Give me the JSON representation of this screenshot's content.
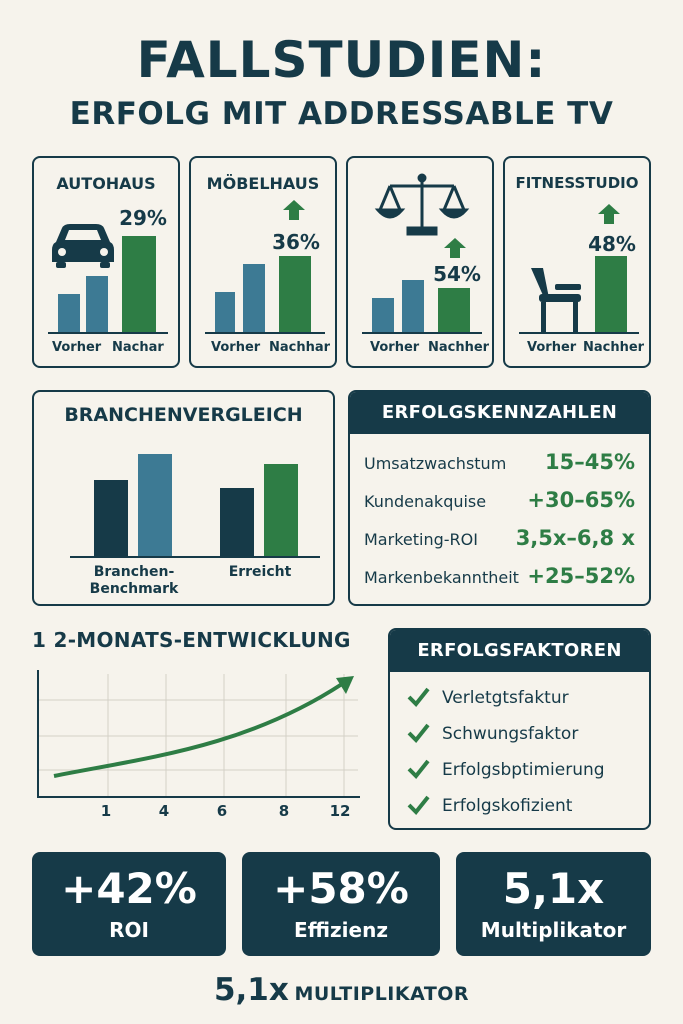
{
  "header": {
    "title": "FALLSTUDIEN:",
    "subtitle": "ERFOLG MIT ADDRESSABLE TV"
  },
  "case_studies": [
    {
      "name": "AUTOHAUS",
      "icon": "car-icon",
      "value_label": "29%",
      "before_label": "Vorher",
      "after_label": "Nachar",
      "arrow": false
    },
    {
      "name": "MÖBELHAUS",
      "icon": "",
      "value_label": "36%",
      "before_label": "Vorher",
      "after_label": "Nachhar",
      "arrow": true
    },
    {
      "name": "",
      "icon": "scales-icon",
      "value_label": "54%",
      "before_label": "Vorher",
      "after_label": "Nachher",
      "arrow": true
    },
    {
      "name": "FITNESSTUDIO",
      "icon": "chair-icon",
      "value_label": "48%",
      "before_label": "Vorher",
      "after_label": "Nachher",
      "arrow": true
    }
  ],
  "comparison": {
    "title": "BRANCHENVERGLEICH",
    "groups": [
      "Branchen-\nBenchmark",
      "Erreicht"
    ],
    "group_line1": "Branchen-",
    "group_line2": "Benchmark",
    "group2": "Erreicht"
  },
  "kpis": {
    "title": "ERFOLGSKENNZAHLEN",
    "rows": [
      {
        "label": "Umsatzwachstum",
        "value": "15–45%"
      },
      {
        "label": "Kundenakquise",
        "value": "+30–65%"
      },
      {
        "label": "Marketing-ROI",
        "value": "3,5x–6,8 x"
      },
      {
        "label": "Markenbekanntheit",
        "value": "+25–52%"
      }
    ]
  },
  "development": {
    "title": "1 2-MONATS-ENTWICKLUNG",
    "x_ticks": [
      "1",
      "4",
      "6",
      "8",
      "12"
    ]
  },
  "factors": {
    "title": "ERFOLGSFAKTOREN",
    "items": [
      "Verletgtsfaktur",
      "Schwungsfaktor",
      "Erfolgsbptimierung",
      "Erfolgskofizient"
    ]
  },
  "stats": [
    {
      "value": "+42%",
      "label": "ROI"
    },
    {
      "value": "+58%",
      "label": "Effizienz"
    },
    {
      "value": "5,1x",
      "label": "Multiplikator"
    }
  ],
  "footer": {
    "value": "5,1x",
    "label": "MULTIPLIKATOR"
  },
  "colors": {
    "navy": "#163a48",
    "steel": "#3d7a94",
    "green": "#2e7d45",
    "background": "#f6f3ec"
  }
}
